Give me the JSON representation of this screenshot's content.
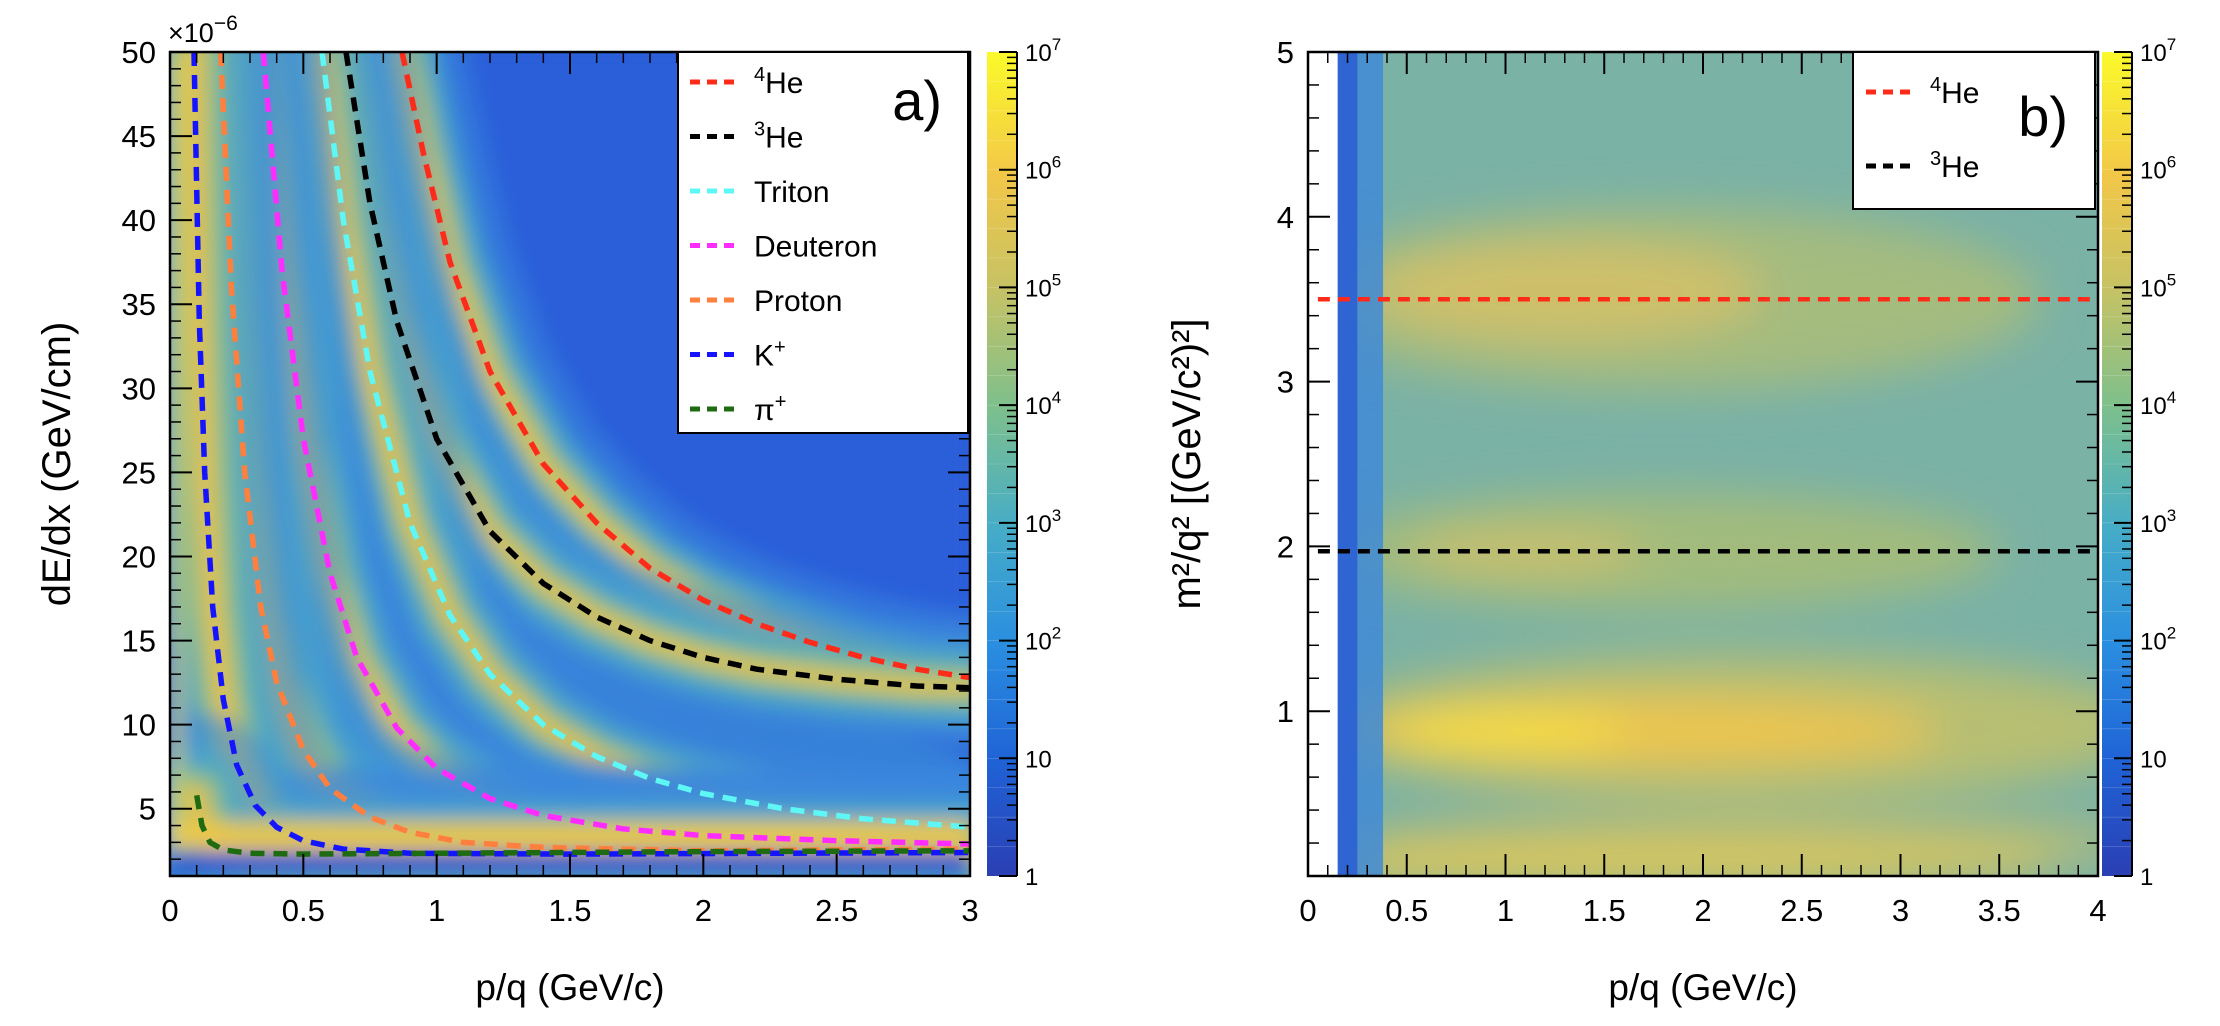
{
  "chart_data": [
    {
      "type": "heatmap",
      "panel_label": "a)",
      "xlabel": "p/q (GeV/c)",
      "ylabel": "dE/dx (GeV/cm)",
      "y_multiplier": "×10",
      "y_multiplier_exp": "−6",
      "xlim": [
        0,
        3
      ],
      "ylim": [
        1,
        50
      ],
      "x_ticks": [
        "0",
        "0.5",
        "1",
        "1.5",
        "2",
        "2.5",
        "3"
      ],
      "x_tick_values": [
        0,
        0.5,
        1,
        1.5,
        2,
        2.5,
        3
      ],
      "y_ticks": [
        "5",
        "10",
        "15",
        "20",
        "25",
        "30",
        "35",
        "40",
        "45",
        "50"
      ],
      "y_tick_values": [
        5,
        10,
        15,
        20,
        25,
        30,
        35,
        40,
        45,
        50
      ],
      "z_scale": "log",
      "z_range": [
        1,
        10000000
      ],
      "colorbar_ticks": [
        {
          "base": "1",
          "exp": ""
        },
        {
          "base": "10",
          "exp": ""
        },
        {
          "base": "10",
          "exp": "2"
        },
        {
          "base": "10",
          "exp": "3"
        },
        {
          "base": "10",
          "exp": "4"
        },
        {
          "base": "10",
          "exp": "5"
        },
        {
          "base": "10",
          "exp": "6"
        },
        {
          "base": "10",
          "exp": "7"
        }
      ],
      "legend_placement": "top-right",
      "legend": [
        {
          "sup": "4",
          "name": "He",
          "color": "#ff2b1a"
        },
        {
          "sup": "3",
          "name": "He",
          "color": "#000000"
        },
        {
          "sup": "",
          "name": "Triton",
          "color": "#5ff6f6"
        },
        {
          "sup": "",
          "name": "Deuteron",
          "color": "#ff2cff"
        },
        {
          "sup": "",
          "name": "Proton",
          "color": "#ff7f3f"
        },
        {
          "sup": "+",
          "name": "K",
          "color": "#1414ff"
        },
        {
          "sup": "+",
          "name": "π",
          "color": "#1e6b12"
        }
      ],
      "series": [
        {
          "legend_index": 0,
          "color": "#ff2b1a",
          "x": [
            0.87,
            0.95,
            1.05,
            1.2,
            1.4,
            1.6,
            1.8,
            2.0,
            2.2,
            2.4,
            2.6,
            2.8,
            3.0
          ],
          "y": [
            50,
            44,
            37.5,
            31,
            25.5,
            22,
            19.3,
            17.4,
            16,
            14.9,
            14,
            13.3,
            12.8
          ]
        },
        {
          "legend_index": 1,
          "color": "#000000",
          "x": [
            0.66,
            0.75,
            0.85,
            1.0,
            1.2,
            1.4,
            1.6,
            1.8,
            2.0,
            2.2,
            2.5,
            2.8,
            3.0
          ],
          "y": [
            50,
            41,
            34,
            27,
            21.5,
            18.4,
            16.4,
            15,
            14,
            13.3,
            12.7,
            12.3,
            12.2
          ]
        },
        {
          "legend_index": 2,
          "color": "#5ff6f6",
          "x": [
            0.57,
            0.65,
            0.75,
            0.9,
            1.05,
            1.2,
            1.4,
            1.6,
            1.8,
            2.0,
            2.3,
            2.6,
            3.0
          ],
          "y": [
            50,
            40,
            31,
            22,
            16.5,
            13,
            10,
            8.1,
            6.8,
            5.9,
            5,
            4.4,
            3.9
          ]
        },
        {
          "legend_index": 3,
          "color": "#ff2cff",
          "x": [
            0.35,
            0.42,
            0.5,
            0.6,
            0.7,
            0.85,
            1.0,
            1.2,
            1.4,
            1.7,
            2.0,
            2.5,
            3.0
          ],
          "y": [
            50,
            37,
            27,
            19,
            14,
            9.8,
            7.4,
            5.6,
            4.6,
            3.8,
            3.4,
            3.1,
            2.9
          ]
        },
        {
          "legend_index": 4,
          "color": "#ff7f3f",
          "x": [
            0.19,
            0.23,
            0.28,
            0.34,
            0.4,
            0.5,
            0.6,
            0.75,
            0.9,
            1.1,
            1.4,
            2.0,
            3.0
          ],
          "y": [
            50,
            36,
            25,
            17,
            12.5,
            8.5,
            6.2,
            4.5,
            3.6,
            3.0,
            2.7,
            2.5,
            2.6
          ]
        },
        {
          "legend_index": 5,
          "color": "#1414ff",
          "x": [
            0.09,
            0.11,
            0.13,
            0.16,
            0.2,
            0.25,
            0.32,
            0.4,
            0.5,
            0.65,
            0.9,
            1.5,
            3.0
          ],
          "y": [
            50,
            34,
            25,
            17,
            11.5,
            7.6,
            5.2,
            3.9,
            3.1,
            2.6,
            2.35,
            2.3,
            2.4
          ]
        },
        {
          "legend_index": 6,
          "color": "#1e6b12",
          "x": [
            0.1,
            0.12,
            0.15,
            0.2,
            0.3,
            0.5,
            1.0,
            2.0,
            3.0
          ],
          "y": [
            5.8,
            4.0,
            3.0,
            2.55,
            2.35,
            2.3,
            2.35,
            2.45,
            2.5
          ]
        }
      ]
    },
    {
      "type": "heatmap",
      "panel_label": "b)",
      "xlabel": "p/q (GeV/c)",
      "ylabel": "m²/q² [(GeV/c²)²]",
      "xlim": [
        0,
        4
      ],
      "ylim": [
        0,
        5
      ],
      "x_ticks": [
        "0",
        "0.5",
        "1",
        "1.5",
        "2",
        "2.5",
        "3",
        "3.5",
        "4"
      ],
      "x_tick_values": [
        0,
        0.5,
        1,
        1.5,
        2,
        2.5,
        3,
        3.5,
        4
      ],
      "y_ticks": [
        "1",
        "2",
        "3",
        "4",
        "5"
      ],
      "y_tick_values": [
        1,
        2,
        3,
        4,
        5
      ],
      "z_scale": "log",
      "z_range": [
        1,
        10000000
      ],
      "colorbar_ticks": [
        {
          "base": "1",
          "exp": ""
        },
        {
          "base": "10",
          "exp": ""
        },
        {
          "base": "10",
          "exp": "2"
        },
        {
          "base": "10",
          "exp": "3"
        },
        {
          "base": "10",
          "exp": "4"
        },
        {
          "base": "10",
          "exp": "5"
        },
        {
          "base": "10",
          "exp": "6"
        },
        {
          "base": "10",
          "exp": "7"
        }
      ],
      "legend_placement": "top-right",
      "legend": [
        {
          "sup": "4",
          "name": "He",
          "color": "#ff2b1a"
        },
        {
          "sup": "3",
          "name": "He",
          "color": "#000000"
        }
      ],
      "series": [
        {
          "legend_index": 0,
          "color": "#ff2b1a",
          "x": [
            0.05,
            4.0
          ],
          "y": [
            3.5,
            3.5
          ]
        },
        {
          "legend_index": 1,
          "color": "#000000",
          "x": [
            0.05,
            4.0
          ],
          "y": [
            1.97,
            1.97
          ]
        }
      ]
    }
  ]
}
